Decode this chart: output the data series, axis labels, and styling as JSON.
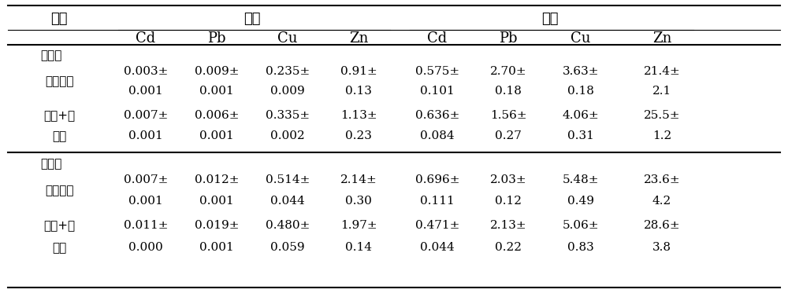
{
  "col_labels": [
    "Cd",
    "Pb",
    "Cu",
    "Zn",
    "Cd",
    "Pb",
    "Cu",
    "Zn"
  ],
  "group1_label": "节瓜",
  "group2_label": "茎叶",
  "treat_label": "处理",
  "section1_label": "第３次",
  "section2_label": "第４次",
  "row_labels": [
    [
      "单种蚂菜",
      ""
    ],
    [
      "蔬菜+淤",
      "洗剂"
    ],
    [
      "单种蚂菜",
      ""
    ],
    [
      "蔬菜+淤",
      "洗剂"
    ]
  ],
  "rows": [
    {
      "v1": [
        "0.003±",
        "0.009±",
        "0.235±",
        "0.91±",
        "0.575±",
        "2.70±",
        "3.63±",
        "21.4±"
      ],
      "v2": [
        "0.001",
        "0.001",
        "0.009",
        "0.13",
        "0.101",
        "0.18",
        "0.18",
        "2.1"
      ]
    },
    {
      "v1": [
        "0.007±",
        "0.006±",
        "0.335±",
        "1.13±",
        "0.636±",
        "1.56±",
        "4.06±",
        "25.5±"
      ],
      "v2": [
        "0.001",
        "0.001",
        "0.002",
        "0.23",
        "0.084",
        "0.27",
        "0.31",
        "1.2"
      ]
    },
    {
      "v1": [
        "0.007±",
        "0.012±",
        "0.514±",
        "2.14±",
        "0.696±",
        "2.03±",
        "5.48±",
        "23.6±"
      ],
      "v2": [
        "0.001",
        "0.001",
        "0.044",
        "0.30",
        "0.111",
        "0.12",
        "0.49",
        "4.2"
      ]
    },
    {
      "v1": [
        "0.011±",
        "0.019±",
        "0.480±",
        "1.97±",
        "0.471±",
        "2.13±",
        "5.06±",
        "28.6±"
      ],
      "v2": [
        "0.000",
        "0.001",
        "0.059",
        "0.14",
        "0.044",
        "0.22",
        "0.83",
        "3.8"
      ]
    }
  ],
  "font_size_data": 11,
  "font_size_header": 13,
  "font_size_group": 13
}
